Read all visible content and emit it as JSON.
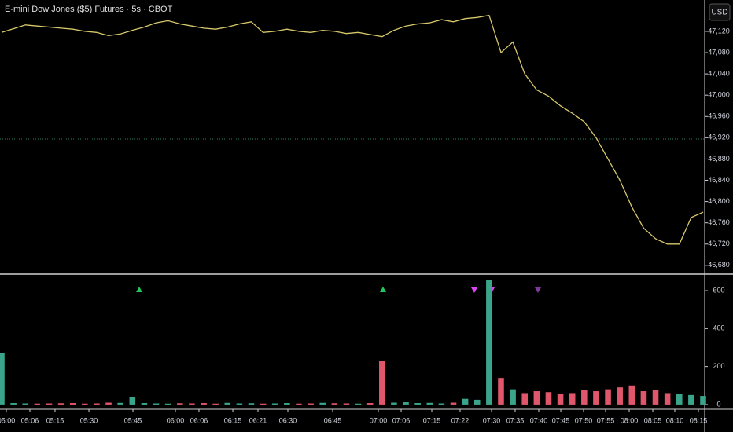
{
  "currency": "USD",
  "x_axis": {
    "labels": [
      "05:00",
      "05:06",
      "05:15",
      "05:30",
      "05:45",
      "06:00",
      "06:06",
      "06:15",
      "06:21",
      "06:30",
      "06:45",
      "07:00",
      "07:06",
      "07:15",
      "07:22",
      "07:30",
      "07:35",
      "07:40",
      "07:45",
      "07:50",
      "07:55",
      "08:00",
      "08:05",
      "08:10",
      "08:15"
    ]
  },
  "chart_data": [
    {
      "type": "line",
      "title": "E-mini Dow Jones ($5) Futures · 5s · CBOT",
      "color": "#d8c86c",
      "values": [
        47118,
        47125,
        47132,
        47130,
        47128,
        47126,
        47124,
        47120,
        47118,
        47112,
        47115,
        47122,
        47128,
        47136,
        47140,
        47134,
        47130,
        47126,
        47124,
        47128,
        47134,
        47138,
        47118,
        47120,
        47124,
        47120,
        47118,
        47122,
        47120,
        47116,
        47118,
        47114,
        47110,
        47122,
        47130,
        47134,
        47136,
        47142,
        47138,
        47144,
        47146,
        47150,
        47080,
        47100,
        47040,
        47010,
        46998,
        46980,
        46966,
        46950,
        46920,
        46880,
        46840,
        46790,
        46750,
        46730,
        46720,
        46720,
        46770,
        46780
      ],
      "ylim": [
        46665,
        47179
      ],
      "yticks": [
        {
          "value": 47120,
          "label": "47,120"
        },
        {
          "value": 47080,
          "label": "47,080"
        },
        {
          "value": 47040,
          "label": "47,040"
        },
        {
          "value": 47000,
          "label": "47,000"
        },
        {
          "value": 46960,
          "label": "46,960"
        },
        {
          "value": 46920,
          "label": "46,920"
        },
        {
          "value": 46880,
          "label": "46,880"
        },
        {
          "value": 46840,
          "label": "46,840"
        },
        {
          "value": 46800,
          "label": "46,800"
        },
        {
          "value": 46760,
          "label": "46,760"
        },
        {
          "value": 46720,
          "label": "46,720"
        },
        {
          "value": 46680,
          "label": "46,680"
        }
      ]
    },
    {
      "type": "bar",
      "up_color": "#3aa58a",
      "down_color": "#e0566a",
      "values": [
        270,
        8,
        6,
        5,
        6,
        7,
        8,
        5,
        6,
        10,
        9,
        40,
        8,
        6,
        5,
        7,
        6,
        8,
        5,
        9,
        6,
        7,
        5,
        6,
        8,
        5,
        6,
        9,
        7,
        6,
        5,
        8,
        230,
        10,
        12,
        8,
        9,
        6,
        10,
        30,
        25,
        654,
        140,
        80,
        60,
        70,
        65,
        55,
        60,
        75,
        70,
        80,
        90,
        100,
        70,
        75,
        60,
        55,
        50,
        45
      ],
      "ylim": [
        -21,
        683
      ],
      "yticks": [
        600,
        400,
        200,
        0
      ]
    }
  ]
}
